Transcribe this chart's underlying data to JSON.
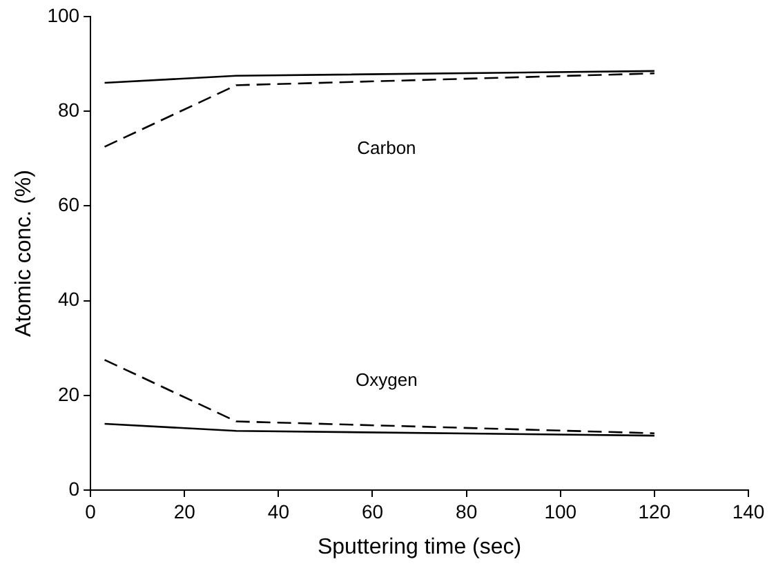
{
  "chart_data": {
    "type": "line",
    "xlabel": "Sputtering time (sec)",
    "ylabel": "Atomic conc. (%)",
    "xlim": [
      0,
      140
    ],
    "xticks": [
      0,
      20,
      40,
      60,
      80,
      100,
      120,
      140
    ],
    "ylim": [
      0,
      100
    ],
    "yticks": [
      0,
      20,
      40,
      60,
      80,
      100
    ],
    "grid": false,
    "legend": false,
    "marker": "none",
    "series": [
      {
        "color": "#000000",
        "line_style": "solid",
        "x": [
          3,
          31,
          120
        ],
        "values": [
          86,
          87.5,
          88.5
        ]
      },
      {
        "color": "#000000",
        "line_style": "dashed",
        "x": [
          3,
          31,
          120
        ],
        "values": [
          72.5,
          85.5,
          88
        ]
      },
      {
        "color": "#000000",
        "line_style": "solid",
        "x": [
          3,
          31,
          120
        ],
        "values": [
          14,
          12.5,
          11.5
        ]
      },
      {
        "color": "#000000",
        "line_style": "dashed",
        "x": [
          3,
          31,
          120
        ],
        "values": [
          27.5,
          14.5,
          12
        ]
      }
    ],
    "annotations": [
      "Carbon",
      "Oxygen"
    ]
  }
}
